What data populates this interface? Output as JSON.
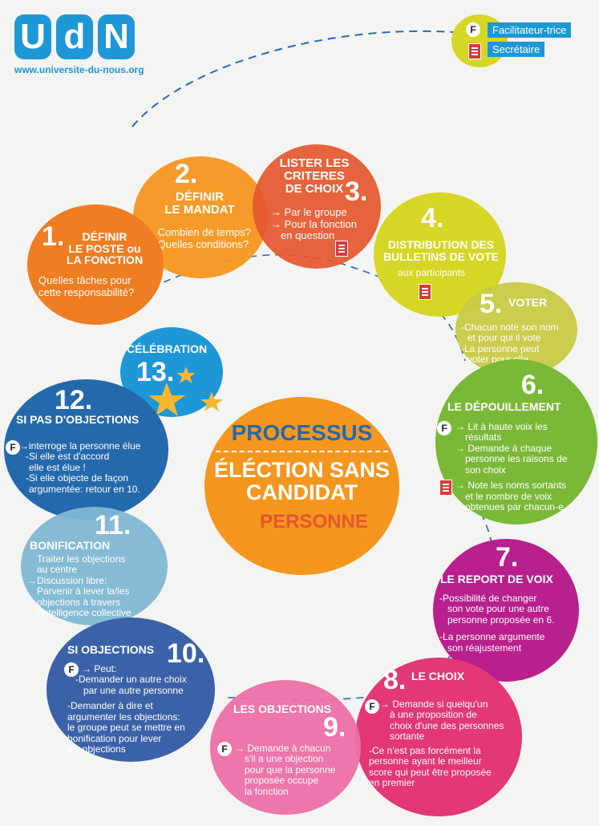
{
  "logo": {
    "letters": [
      "U",
      "d",
      "N"
    ],
    "url": "www.universite-du-nous.org"
  },
  "legend": {
    "badge": "F",
    "facilitator": "Facilitateur-trice",
    "secretary": "Secrétaire"
  },
  "center": {
    "line1": "PROCESSUS",
    "line2": "ÉLÉCTION SANS",
    "line3": "CANDIDAT",
    "line4": "PERSONNE"
  },
  "steps": [
    {
      "n": "1.",
      "title": [
        "DÉFINIR",
        "LE POSTE ou",
        "LA FONCTION"
      ],
      "lines": [
        "Quelles tâches pour",
        "cette responsabilité?"
      ]
    },
    {
      "n": "2.",
      "title": [
        "DÉFINIR",
        "LE MANDAT"
      ],
      "lines": [
        "→ Combien de temps?",
        "→ Quelles conditions?"
      ]
    },
    {
      "n": "3.",
      "title": [
        "LISTER LES",
        "CRITERES",
        "DE CHOIX"
      ],
      "lines": [
        "→ Par le groupe",
        "→ Pour la fonction",
        "en question"
      ]
    },
    {
      "n": "4.",
      "title": [
        "DISTRIBUTION DES",
        "BULLETINS DE VOTE"
      ],
      "lines": [
        "aux participants"
      ]
    },
    {
      "n": "5.",
      "title": [
        "VOTER"
      ],
      "lines": [
        "-Chacun note son nom",
        "et pour qui il vote",
        "-La personne peut",
        "voter pour elle"
      ]
    },
    {
      "n": "6.",
      "title": [
        "LE DÉPOUILLEMENT"
      ],
      "lines": [
        "→ Lit à haute voix les",
        "résultats",
        "→ Demande à chaque",
        "personne les raisons de",
        "son choix",
        "→ Note les noms sortants",
        "et le nombre de voix",
        "obtenues par chacun-e"
      ]
    },
    {
      "n": "7.",
      "title": [
        "LE REPORT DE VOIX"
      ],
      "lines": [
        "-Possibilité de changer",
        "son vote pour une autre",
        "personne proposée en 6.",
        "-La personne argumente",
        "son réajustement"
      ]
    },
    {
      "n": "8.",
      "title": [
        "LE CHOIX"
      ],
      "lines": [
        "→ Demande si quelqu'un",
        "à une proposition de",
        "choix d'une des personnes",
        "sortante",
        "-Ce n'est pas forcément la",
        "personne ayant le meilleur",
        "score qui peut être proposée",
        "en premier"
      ]
    },
    {
      "n": "9.",
      "title": [
        "LES OBJECTIONS"
      ],
      "lines": [
        "→ Demande à chacun",
        "s'il a une objection",
        "pour que la personne",
        "proposée occupe",
        "la fonction"
      ]
    },
    {
      "n": "10.",
      "title": [
        "SI OBJECTIONS"
      ],
      "lines": [
        "→ Peut:",
        "-Demander un autre choix",
        "par une autre personne",
        "-Demander à dire et",
        "argumenter les objections:",
        "le groupe peut se mettre en",
        "bonification pour lever",
        "les objections"
      ]
    },
    {
      "n": "11.",
      "title": [
        "BONIFICATION"
      ],
      "lines": [
        "Traiter les objections",
        "au centre",
        "→Discussion libre:",
        "Parvenir à lever la/les",
        "objections à travers",
        "l'intelligence collective"
      ]
    },
    {
      "n": "12.",
      "title": [
        "SI PAS D'OBJECTIONS"
      ],
      "lines": [
        "→interroge la personne élue",
        "-Si elle est d'accord",
        "elle est élue !",
        "-Si elle objecte de façon",
        "argumentée: retour en 10."
      ]
    },
    {
      "n": "13.",
      "title": [
        "CÉLÉBRATION"
      ],
      "lines": []
    }
  ],
  "colors": {
    "blue": "#1e97d6",
    "orange": "#ef7d22",
    "red": "#e4572e",
    "yellow": "#d6d626",
    "green": "#7ab837",
    "purple": "#b8208d",
    "pink": "#e33776",
    "magenta": "#ec6fa7",
    "navy": "#3b62a8",
    "lightblue": "#7fb7d3",
    "darkblue": "#2569ad"
  }
}
